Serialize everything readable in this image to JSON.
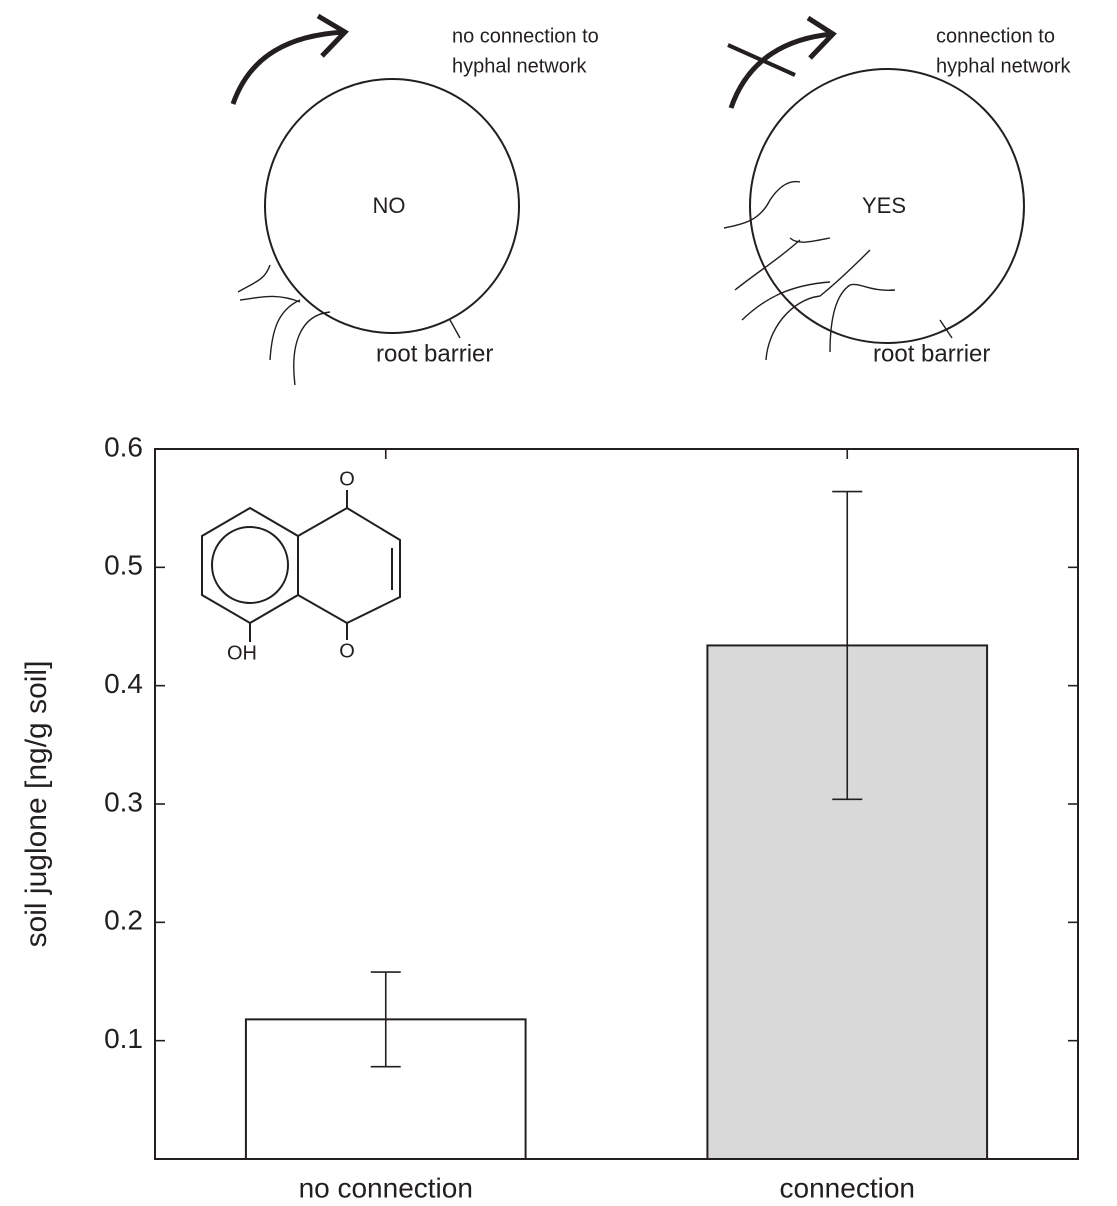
{
  "chart_data": {
    "type": "bar",
    "ylabel": "soil juglone [ng/g soil]",
    "categories": [
      "no connection",
      "connection"
    ],
    "values": [
      0.118,
      0.434
    ],
    "errors": [
      0.04,
      0.13
    ],
    "colors": [
      "#ffffff",
      "#d9d9d9"
    ],
    "ylim": [
      0,
      0.6
    ],
    "yticks": [
      0.1,
      0.2,
      0.3,
      0.4,
      0.5,
      0.6
    ],
    "annotations": [
      "no connection to",
      "hyphal network",
      "NO",
      "root barrier",
      "connection to",
      "hyphal network",
      "YES",
      "root barrier",
      "O",
      "O",
      "OH"
    ]
  }
}
